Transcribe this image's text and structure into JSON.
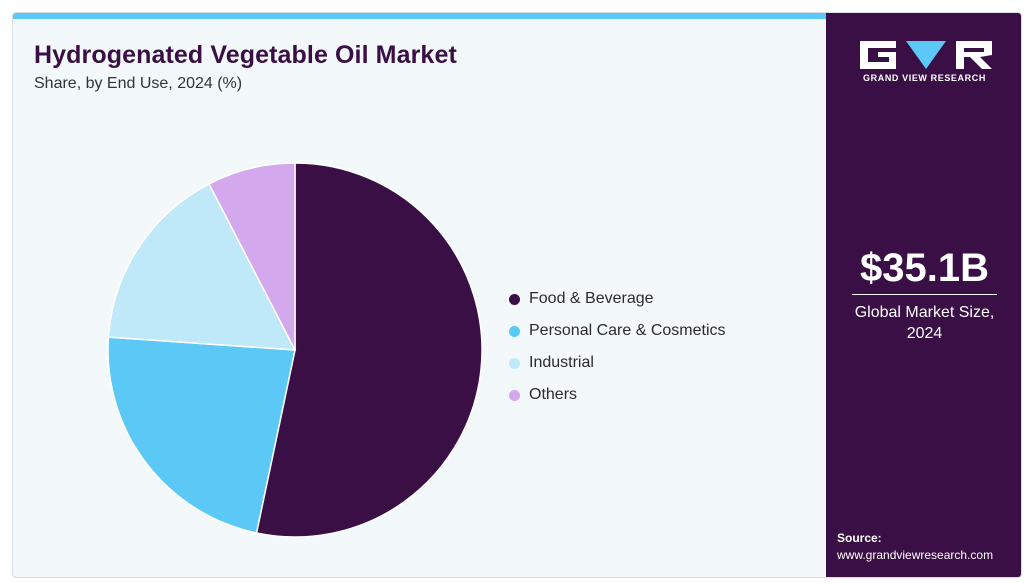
{
  "header": {
    "title": "Hydrogenated Vegetable Oil Market",
    "subtitle": "Share, by End Use, 2024 (%)"
  },
  "sidebar": {
    "brand_name": "GRAND VIEW RESEARCH",
    "logo_icon": "gvr-logo-icon",
    "market_size_value": "$35.1B",
    "market_size_label": "Global Market Size, 2024",
    "source_label": "Source:",
    "source_url": "www.grandviewresearch.com",
    "colors": {
      "background": "#3a0f45",
      "accent": "#5bc8f5"
    }
  },
  "chart_data": {
    "type": "pie",
    "title": "Hydrogenated Vegetable Oil Market",
    "subtitle": "Share, by End Use, 2024 (%)",
    "start_angle_deg": 0,
    "direction": "clockwise",
    "legend_position": "right",
    "series": [
      {
        "name": "Food & Beverage",
        "value": 53.3,
        "color": "#3a0f45"
      },
      {
        "name": "Personal Care & Cosmetics",
        "value": 22.8,
        "color": "#5bc8f5"
      },
      {
        "name": "Industrial",
        "value": 16.3,
        "color": "#bfe9f9"
      },
      {
        "name": "Others",
        "value": 7.6,
        "color": "#d3a8ec"
      }
    ]
  }
}
